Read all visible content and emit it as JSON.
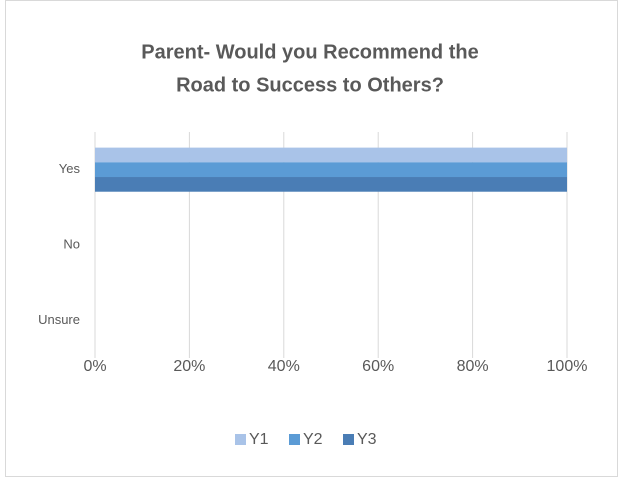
{
  "chart_data": {
    "type": "bar",
    "orientation": "horizontal",
    "title": [
      "Parent- Would you Recommend the",
      "Road to Success to Others?"
    ],
    "categories": [
      "Yes",
      "No",
      "Unsure"
    ],
    "series": [
      {
        "name": "Y1",
        "color": "#a9c3e8",
        "values": [
          100,
          0,
          0
        ]
      },
      {
        "name": "Y2",
        "color": "#5b9bd5",
        "values": [
          100,
          0,
          0
        ]
      },
      {
        "name": "Y3",
        "color": "#4a7db5",
        "values": [
          100,
          0,
          0
        ]
      }
    ],
    "xlim": [
      0,
      100
    ],
    "xticks": [
      {
        "value": 0,
        "label": "0%"
      },
      {
        "value": 20,
        "label": "20%"
      },
      {
        "value": 40,
        "label": "40%"
      },
      {
        "value": 60,
        "label": "60%"
      },
      {
        "value": 80,
        "label": "80%"
      },
      {
        "value": 100,
        "label": "100%"
      }
    ],
    "grid": true,
    "legend": "bottom"
  }
}
